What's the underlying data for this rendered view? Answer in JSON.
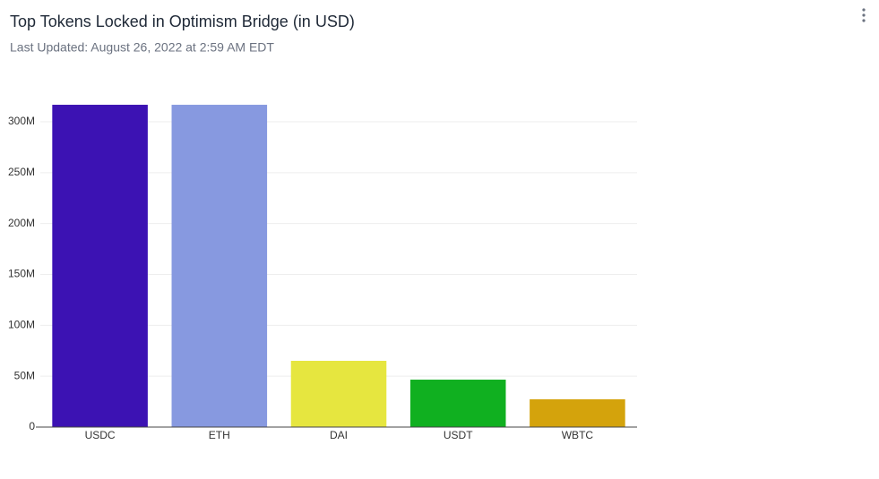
{
  "chart_data": {
    "type": "bar",
    "title": "Top Tokens Locked in Optimism Bridge (in USD)",
    "subtitle": "Last Updated: August 26, 2022 at 2:59 AM EDT",
    "categories": [
      "USDC",
      "ETH",
      "DAI",
      "USDT",
      "WBTC"
    ],
    "values": [
      316700000,
      316700000,
      65100000,
      46600000,
      27300000
    ],
    "colors": [
      "#3c12b3",
      "#8799e0",
      "#e6e63f",
      "#10b020",
      "#d4a30c"
    ],
    "ylim": [
      0,
      333000000
    ],
    "yticks": [
      0,
      {
        "value": 50000000,
        "label": "50M"
      },
      {
        "value": 100000000,
        "label": "100M"
      },
      {
        "value": 150000000,
        "label": "150M"
      },
      {
        "value": 200000000,
        "label": "200M"
      },
      {
        "value": 250000000,
        "label": "250M"
      },
      {
        "value": 300000000,
        "label": "300M"
      }
    ],
    "grid": true
  }
}
